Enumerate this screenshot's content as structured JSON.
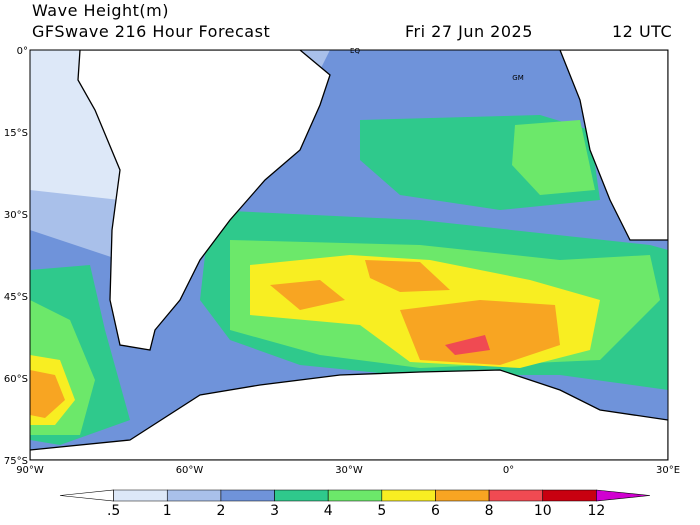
{
  "header": {
    "title": "Wave Height(m)",
    "subtitle": "GFSwave 216 Hour Forecast",
    "date": "Fri 27 Jun 2025",
    "time": "12 UTC"
  },
  "map": {
    "lat_labels": [
      "0°",
      "15°S",
      "30°S",
      "45°S",
      "60°S",
      "75°S"
    ],
    "lon_labels": [
      "90°W",
      "60°W",
      "30°W",
      "0°",
      "30°E"
    ],
    "place_labels": [
      "EQ",
      "GM"
    ]
  },
  "colorbar": {
    "labels": [
      ".5",
      "1",
      "2",
      "3",
      "4",
      "5",
      "6",
      "8",
      "10",
      "12"
    ],
    "colors": [
      "#ffffff",
      "#dde8f8",
      "#a9c0ea",
      "#6f93da",
      "#2fc98c",
      "#6ce86a",
      "#f8ee22",
      "#f8a522",
      "#f04a52",
      "#c80010",
      "#d000d0"
    ]
  }
}
